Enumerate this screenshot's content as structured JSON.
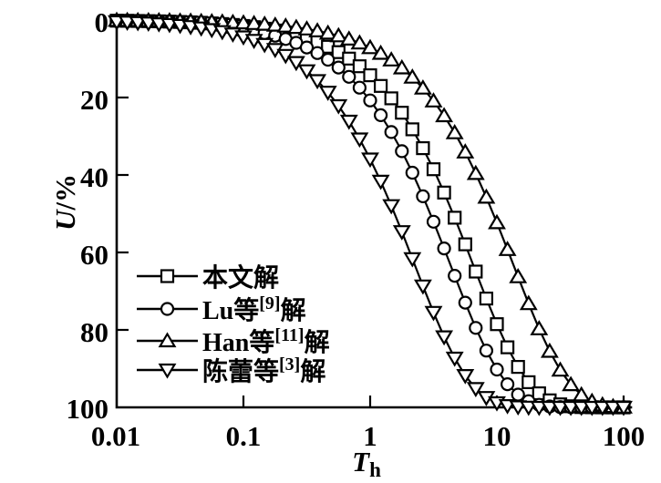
{
  "figure": {
    "kind": "scientific consolidation-degree chart",
    "background": "#ffffff",
    "ink": "#000000"
  },
  "axes": {
    "x": {
      "scale": "log",
      "min": 0.01,
      "max": 100,
      "ticks": [
        "0.01",
        "0.1",
        "1",
        "10",
        "100"
      ],
      "tick_mark_values": [
        0.1,
        1,
        10,
        100
      ],
      "label_main": "T",
      "label_sub": "h"
    },
    "y": {
      "scale": "linear",
      "inverted": true,
      "min": 0,
      "max": 100,
      "ticks": [
        "0",
        "20",
        "40",
        "60",
        "80",
        "100"
      ],
      "tick_mark_values": [
        20,
        40,
        60,
        80
      ],
      "label_italic": "U",
      "label_rest": "/%"
    }
  },
  "legend": {
    "position": "lower-left-inside",
    "items": [
      {
        "pre": "本文解",
        "sup": "",
        "post": "",
        "marker": "square"
      },
      {
        "pre": "Lu等",
        "sup": "[9]",
        "post": "解",
        "marker": "circle"
      },
      {
        "pre": "Han等",
        "sup": "[11]",
        "post": "解",
        "marker": "triangle-up"
      },
      {
        "pre": "陈蕾等",
        "sup": "[3]",
        "post": "解",
        "marker": "triangle-down"
      }
    ]
  },
  "chart_data": {
    "type": "line",
    "title": "",
    "xlabel": "T_h",
    "ylabel": "U/%",
    "x_scale": "log",
    "x_range": [
      0.01,
      100
    ],
    "y_range": [
      0,
      100
    ],
    "y_axis_inverted": true,
    "grid": false,
    "legend_position": "lower-left-inside",
    "markers_per_decade": 12,
    "series_model": "U(T) = 100 * (1 - exp(-T / tau)), percent consolidation vs time factor",
    "series": [
      {
        "name": "本文解",
        "marker": "square",
        "color": "#000000",
        "tau": 6.5,
        "T50": 4.5,
        "sample_T": [
          0.01,
          0.1,
          1,
          10,
          100
        ],
        "sample_U": [
          0.2,
          1.5,
          14.3,
          78.5,
          100
        ]
      },
      {
        "name": "Lu等[9]解",
        "marker": "circle",
        "color": "#000000",
        "tau": 4.3,
        "T50": 3.0,
        "sample_T": [
          0.01,
          0.1,
          1,
          10,
          100
        ],
        "sample_U": [
          0.2,
          2.3,
          20.8,
          90.2,
          100
        ]
      },
      {
        "name": "Han等[11]解",
        "marker": "triangle-up",
        "color": "#000000",
        "tau": 13.5,
        "T50": 9.4,
        "sample_T": [
          0.01,
          0.1,
          1,
          10,
          100
        ],
        "sample_U": [
          0.1,
          0.7,
          7.1,
          52.3,
          99.9
        ]
      },
      {
        "name": "陈蕾等[3]解",
        "marker": "triangle-down",
        "color": "#000000",
        "tau": 2.25,
        "T50": 1.56,
        "sample_T": [
          0.01,
          0.1,
          1,
          10,
          100
        ],
        "sample_U": [
          0.4,
          4.4,
          35.9,
          98.8,
          100
        ]
      }
    ]
  },
  "colors": {
    "ink": "#000000",
    "background": "#ffffff"
  }
}
